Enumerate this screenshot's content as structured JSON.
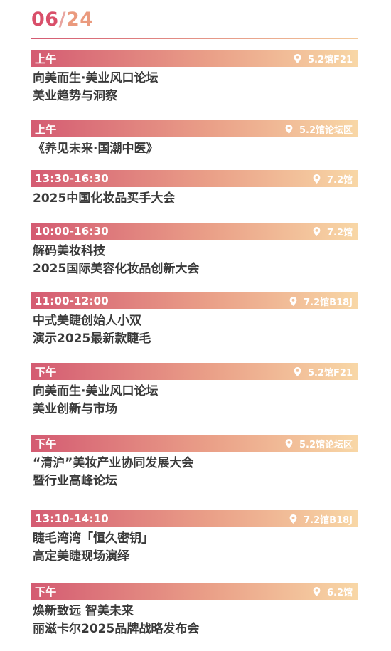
{
  "header": {
    "month": "06",
    "separator": "/",
    "day": "24"
  },
  "events": [
    {
      "time": "上午",
      "location": "5.2馆F21",
      "title_lines": [
        "向美而生·美业风口论坛",
        "美业趋势与洞察"
      ]
    },
    {
      "time": "上午",
      "location": "5.2馆论坛区",
      "title_lines": [
        "《养见未来·国潮中医》",
        ""
      ]
    },
    {
      "time": "13:30-16:30",
      "location": "7.2馆",
      "title_lines": [
        "2025中国化妆品买手大会",
        ""
      ]
    },
    {
      "time": "10:00-16:30",
      "location": "7.2馆",
      "title_lines": [
        "解码美妆科技",
        "2025国际美容化妆品创新大会"
      ]
    },
    {
      "time": "11:00-12:00",
      "location": "7.2馆B18J",
      "title_lines": [
        "中式美睫创始人小双",
        "演示2025最新款睫毛"
      ]
    },
    {
      "time": "下午",
      "location": "5.2馆F21",
      "title_lines": [
        "向美而生·美业风口论坛",
        "美业创新与市场"
      ]
    },
    {
      "time": "下午",
      "location": "5.2馆论坛区",
      "title_lines": [
        "“清沪”美妆产业协同发展大会",
        "暨行业高峰论坛"
      ]
    },
    {
      "time": "13:10-14:10",
      "location": "7.2馆B18J",
      "title_lines": [
        "睫毛湾湾「恒久密钥」",
        "高定美睫现场演绎"
      ]
    },
    {
      "time": "下午",
      "location": "6.2馆",
      "title_lines": [
        "焕新致远 智美未来",
        "丽滋卡尔2025品牌战略发布会"
      ]
    }
  ],
  "icons": {
    "location": "map-pin-icon"
  },
  "colors": {
    "accent_start": "#d45b72",
    "accent_end": "#f8d7a6",
    "text": "#3a3a3a"
  }
}
